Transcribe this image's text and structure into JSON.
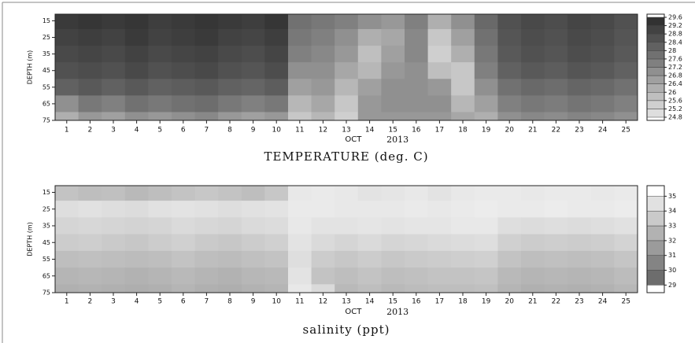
{
  "chart_data": [
    {
      "type": "heatmap",
      "title": "TEMPERATURE (deg. C)",
      "y_label": "DEPTH (m)",
      "month": "OCT",
      "year": "2013",
      "x": [
        1,
        2,
        3,
        4,
        5,
        6,
        7,
        8,
        9,
        10,
        11,
        12,
        13,
        14,
        15,
        16,
        17,
        18,
        19,
        20,
        21,
        22,
        23,
        24,
        25
      ],
      "xlim": [
        0.5,
        25.5
      ],
      "xticks": [
        1,
        2,
        3,
        4,
        5,
        6,
        7,
        8,
        9,
        10,
        11,
        12,
        13,
        14,
        15,
        16,
        17,
        18,
        19,
        20,
        21,
        22,
        23,
        24,
        25
      ],
      "y": [
        15,
        25,
        35,
        45,
        55,
        65,
        75
      ],
      "ylim": [
        11,
        75
      ],
      "yticks": [
        15,
        25,
        35,
        45,
        55,
        65,
        75
      ],
      "y_inverted": true,
      "clim": [
        24.8,
        29.6
      ],
      "colorbar_ticks": [
        24.8,
        25.2,
        25.6,
        26,
        26.4,
        26.8,
        27.2,
        27.6,
        28,
        28.4,
        28.8,
        29.2,
        29.6
      ],
      "colormap": [
        "#e6e6e6",
        "#2a2a2a"
      ],
      "values": [
        [
          29.2,
          29.3,
          29.2,
          29.3,
          29.1,
          29.2,
          29.3,
          29.2,
          29.1,
          29.3,
          27.8,
          27.6,
          27.4,
          27.0,
          26.8,
          27.4,
          26.2,
          27.0,
          28.0,
          28.6,
          28.8,
          28.7,
          28.9,
          28.8,
          28.6
        ],
        [
          29.0,
          29.1,
          29.0,
          29.2,
          29.0,
          29.1,
          29.2,
          29.0,
          28.9,
          29.1,
          27.6,
          27.4,
          27.0,
          26.2,
          26.4,
          27.2,
          25.6,
          26.6,
          27.8,
          28.5,
          28.7,
          28.6,
          28.8,
          28.7,
          28.5
        ],
        [
          28.8,
          28.9,
          28.8,
          29.0,
          28.8,
          28.9,
          29.0,
          28.8,
          28.7,
          28.9,
          27.4,
          27.2,
          26.8,
          25.8,
          26.6,
          27.2,
          25.4,
          26.2,
          27.6,
          28.4,
          28.6,
          28.5,
          28.7,
          28.6,
          28.4
        ],
        [
          28.6,
          28.7,
          28.6,
          28.8,
          28.6,
          28.7,
          28.8,
          28.6,
          28.5,
          28.7,
          27.0,
          27.0,
          26.4,
          26.0,
          26.8,
          27.0,
          25.8,
          25.6,
          27.4,
          28.2,
          28.4,
          28.3,
          28.5,
          28.4,
          28.2
        ],
        [
          28.2,
          28.4,
          28.2,
          28.4,
          28.2,
          28.3,
          28.4,
          28.2,
          28.1,
          28.3,
          26.6,
          26.8,
          26.0,
          26.6,
          27.0,
          27.0,
          26.8,
          25.6,
          27.0,
          27.8,
          28.0,
          27.9,
          28.1,
          28.0,
          27.8
        ],
        [
          27.0,
          27.6,
          27.4,
          27.8,
          27.6,
          27.8,
          27.9,
          27.6,
          27.4,
          27.6,
          26.0,
          26.4,
          25.6,
          26.8,
          27.0,
          27.0,
          27.0,
          26.0,
          26.6,
          27.4,
          27.6,
          27.5,
          27.7,
          27.6,
          27.4
        ],
        [
          26.2,
          26.8,
          26.6,
          27.0,
          26.8,
          27.0,
          27.2,
          26.8,
          26.6,
          26.8,
          25.6,
          26.0,
          25.4,
          26.8,
          26.8,
          26.8,
          26.8,
          26.4,
          26.2,
          27.0,
          27.2,
          27.1,
          27.3,
          27.2,
          27.0
        ]
      ]
    },
    {
      "type": "heatmap",
      "title": "salinity (ppt)",
      "y_label": "DEPTH (m)",
      "month": "OCT",
      "year": "2013",
      "x": [
        1,
        2,
        3,
        4,
        5,
        6,
        7,
        8,
        9,
        10,
        11,
        12,
        13,
        14,
        15,
        16,
        17,
        18,
        19,
        20,
        21,
        22,
        23,
        24,
        25
      ],
      "xlim": [
        0.5,
        25.5
      ],
      "xticks": [
        1,
        2,
        3,
        4,
        5,
        6,
        7,
        8,
        9,
        10,
        11,
        12,
        13,
        14,
        15,
        16,
        17,
        18,
        19,
        20,
        21,
        22,
        23,
        24,
        25
      ],
      "y": [
        15,
        25,
        35,
        45,
        55,
        65,
        75
      ],
      "ylim": [
        11,
        75
      ],
      "yticks": [
        15,
        25,
        35,
        45,
        55,
        65,
        75
      ],
      "y_inverted": true,
      "clim": [
        28.7,
        35.5
      ],
      "colorbar_ticks": [
        29,
        30,
        31,
        32,
        33,
        34,
        35
      ],
      "colormap": [
        "#5a5a5a",
        "#f8f8f8"
      ],
      "values": [
        [
          33.2,
          33.0,
          33.1,
          32.8,
          33.0,
          33.2,
          33.4,
          33.2,
          33.0,
          33.4,
          34.8,
          34.9,
          34.8,
          34.6,
          34.7,
          34.8,
          34.6,
          34.8,
          34.9,
          34.9,
          34.8,
          34.9,
          34.9,
          34.8,
          34.9
        ],
        [
          34.4,
          34.5,
          34.4,
          34.3,
          34.5,
          34.6,
          34.5,
          34.4,
          34.5,
          34.6,
          34.9,
          34.9,
          34.8,
          34.8,
          34.8,
          34.9,
          34.8,
          34.9,
          35.0,
          34.9,
          34.9,
          35.0,
          34.9,
          34.9,
          35.0
        ],
        [
          34.0,
          34.1,
          34.0,
          33.9,
          34.0,
          34.2,
          34.1,
          34.0,
          34.2,
          34.3,
          34.8,
          34.6,
          34.6,
          34.7,
          34.6,
          34.7,
          34.7,
          34.8,
          34.8,
          34.4,
          34.3,
          34.4,
          34.3,
          34.4,
          34.5
        ],
        [
          33.6,
          33.7,
          33.5,
          33.4,
          33.6,
          33.8,
          33.5,
          33.4,
          33.6,
          33.8,
          34.6,
          34.2,
          34.0,
          34.2,
          34.0,
          34.1,
          34.2,
          34.3,
          34.4,
          33.8,
          33.6,
          33.7,
          33.6,
          33.7,
          33.9
        ],
        [
          33.0,
          33.1,
          33.0,
          32.9,
          33.0,
          33.2,
          33.0,
          32.9,
          33.1,
          33.2,
          34.4,
          33.6,
          33.4,
          33.6,
          33.4,
          33.5,
          33.6,
          33.7,
          33.8,
          33.2,
          33.0,
          33.1,
          33.0,
          33.1,
          33.3
        ],
        [
          32.6,
          32.7,
          32.6,
          32.5,
          32.6,
          32.8,
          32.6,
          32.5,
          32.7,
          32.8,
          34.6,
          33.2,
          33.0,
          33.2,
          33.0,
          33.1,
          33.2,
          33.2,
          33.3,
          32.8,
          32.6,
          32.7,
          32.6,
          32.7,
          32.9
        ],
        [
          32.4,
          32.5,
          32.4,
          32.3,
          32.4,
          32.6,
          32.4,
          32.3,
          32.5,
          32.6,
          34.8,
          34.2,
          32.8,
          33.0,
          32.8,
          32.9,
          33.0,
          33.0,
          33.1,
          32.6,
          32.4,
          32.5,
          32.4,
          32.5,
          32.7
        ]
      ]
    }
  ]
}
